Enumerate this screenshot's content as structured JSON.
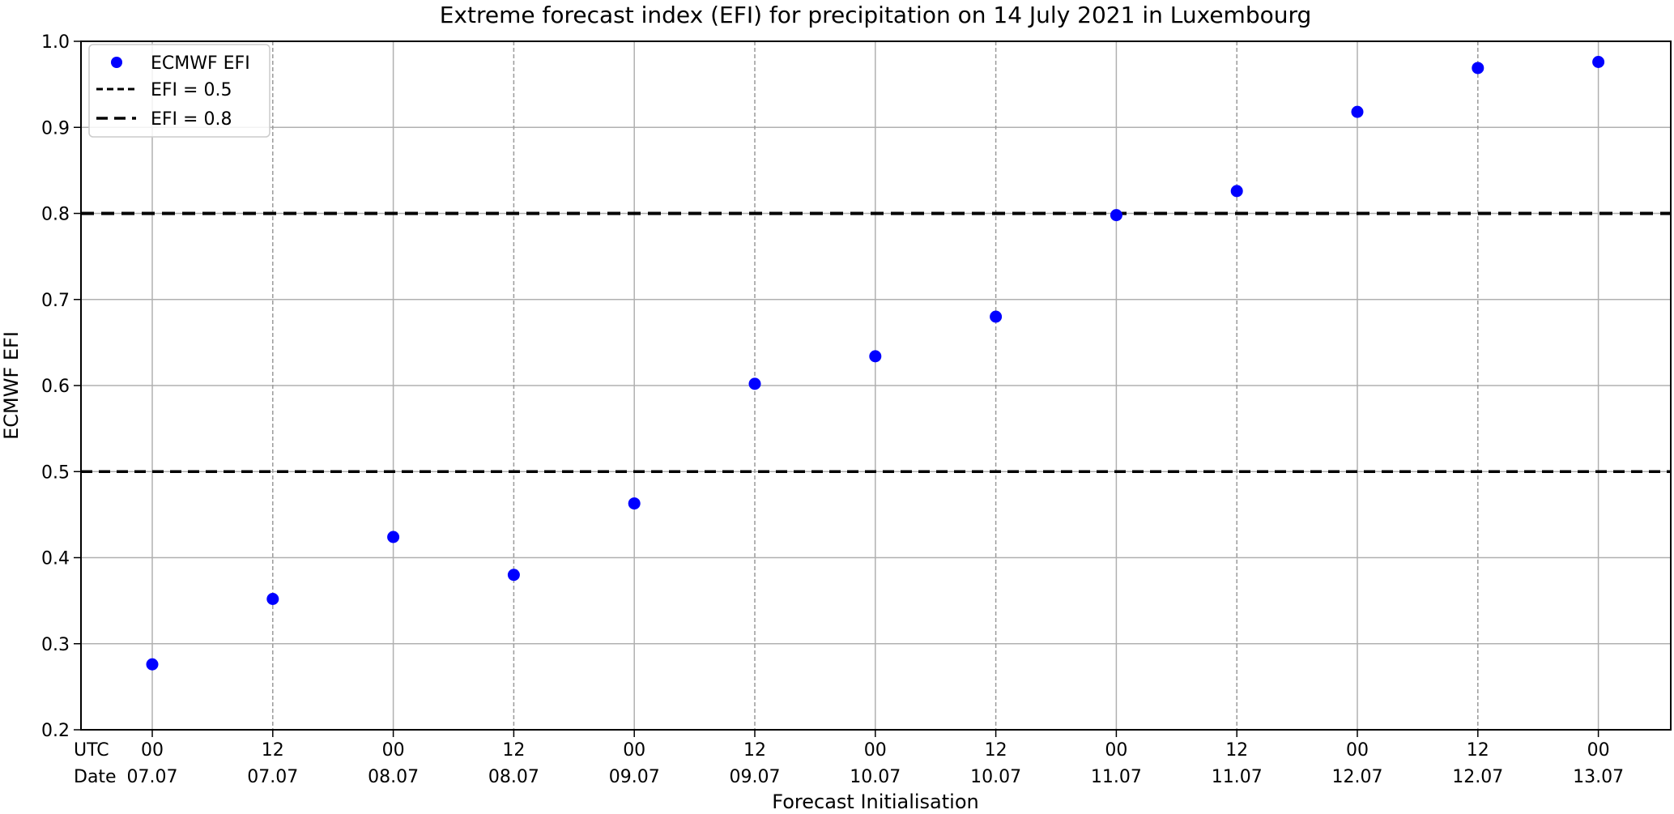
{
  "chart_data": {
    "type": "scatter",
    "title": "Extreme forecast index (EFI) for precipitation on 14 July 2021 in Luxembourg",
    "xlabel": "Forecast Initialisation",
    "ylabel": "ECMWF EFI",
    "row_labels": [
      "UTC",
      "Date"
    ],
    "categories": [
      {
        "utc": "00",
        "date": "07.07"
      },
      {
        "utc": "12",
        "date": "07.07"
      },
      {
        "utc": "00",
        "date": "08.07"
      },
      {
        "utc": "12",
        "date": "08.07"
      },
      {
        "utc": "00",
        "date": "09.07"
      },
      {
        "utc": "12",
        "date": "09.07"
      },
      {
        "utc": "00",
        "date": "10.07"
      },
      {
        "utc": "12",
        "date": "10.07"
      },
      {
        "utc": "00",
        "date": "11.07"
      },
      {
        "utc": "12",
        "date": "11.07"
      },
      {
        "utc": "00",
        "date": "12.07"
      },
      {
        "utc": "12",
        "date": "12.07"
      },
      {
        "utc": "00",
        "date": "13.07"
      }
    ],
    "series": [
      {
        "name": "ECMWF EFI",
        "color": "#0000ff",
        "values": [
          0.276,
          0.352,
          0.424,
          0.38,
          0.463,
          0.602,
          0.634,
          0.68,
          0.798,
          0.826,
          0.918,
          0.969,
          0.976
        ]
      }
    ],
    "reference_lines": [
      {
        "name": "EFI = 0.5",
        "value": 0.5,
        "color": "#000000",
        "style": "dashed"
      },
      {
        "name": "EFI = 0.8",
        "value": 0.8,
        "color": "#000000",
        "style": "dashed"
      }
    ],
    "ylim": [
      0.2,
      1.0
    ],
    "yticks": [
      "0.2",
      "0.3",
      "0.4",
      "0.5",
      "0.6",
      "0.7",
      "0.8",
      "0.9",
      "1.0"
    ],
    "grid": true,
    "legend_position": "top-left"
  }
}
